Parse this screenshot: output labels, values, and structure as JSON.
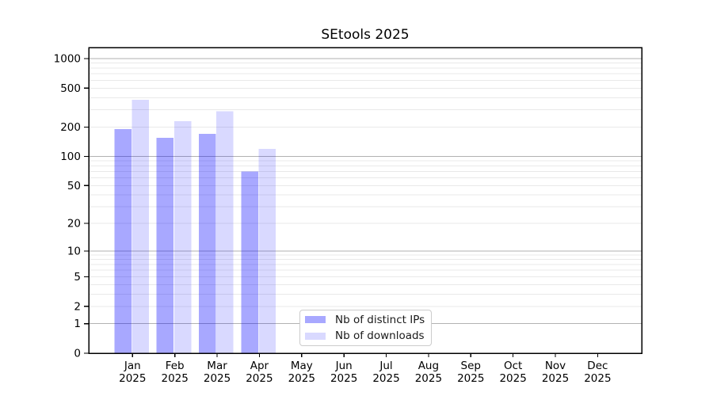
{
  "chart_data": {
    "type": "bar",
    "title": "SEtools 2025",
    "x_categories": [
      "Jan",
      "Feb",
      "Mar",
      "Apr",
      "May",
      "Jun",
      "Jul",
      "Aug",
      "Sep",
      "Oct",
      "Nov",
      "Dec"
    ],
    "x_year": "2025",
    "series": [
      {
        "name": "Nb of distinct IPs",
        "color": "#0000ff",
        "opacity": 0.34,
        "values": [
          190,
          155,
          170,
          70,
          0,
          0,
          0,
          0,
          0,
          0,
          0,
          0
        ]
      },
      {
        "name": "Nb of downloads",
        "color": "#0000ff",
        "opacity": 0.15,
        "values": [
          380,
          230,
          290,
          120,
          0,
          0,
          0,
          0,
          0,
          0,
          0,
          0
        ]
      }
    ],
    "y_axis": {
      "scale": "log1p",
      "ticks": [
        1000,
        500,
        200,
        100,
        50,
        20,
        10,
        5,
        2,
        1,
        0
      ],
      "ylim": [
        0,
        1300
      ]
    },
    "grid": {
      "major_values": [
        1,
        10,
        100,
        1000
      ],
      "minor_bases": [
        1,
        10,
        100
      ],
      "major_color": "#b2b2b2",
      "minor_color": "#e9e9e9"
    },
    "legend_position": "bottom-center",
    "axis_color": "#000000"
  }
}
